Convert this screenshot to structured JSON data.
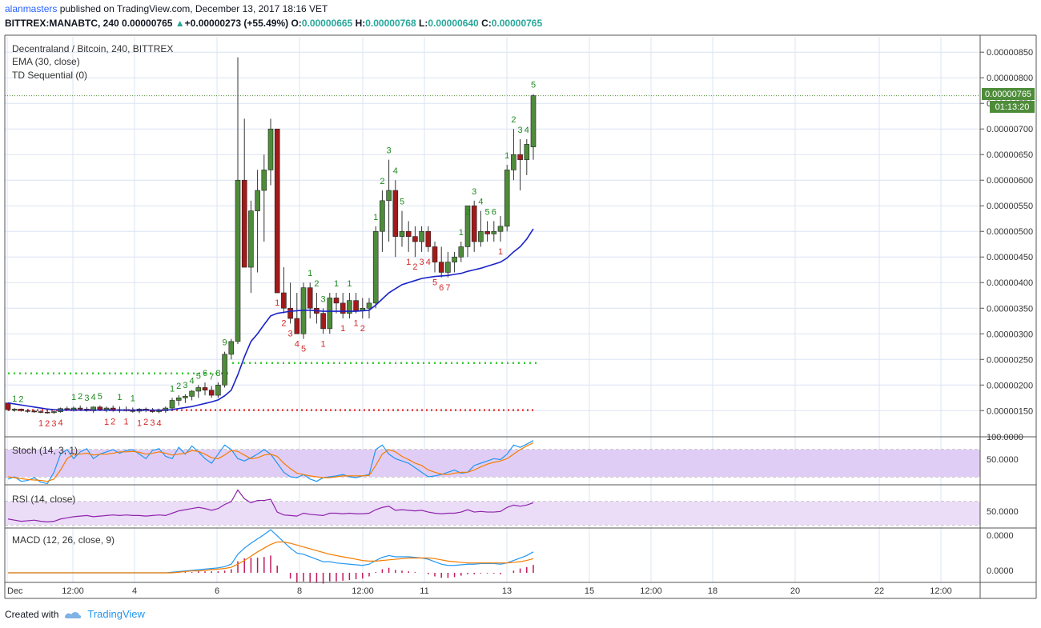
{
  "header": {
    "user": "alanmasters",
    "published_text": " published on TradingView.com, December 13, 2017 18:16 VET",
    "symbol": "BITTREX:MANABTC, 240",
    "last": "0.00000765",
    "change_arrow": "▲",
    "change": "+0.00000273 (+55.49%)",
    "o_label": "O:",
    "o_value": "0.00000665",
    "h_label": "H:",
    "h_value": "0.00000768",
    "l_label": "L:",
    "l_value": "0.00000640",
    "c_label": "C:",
    "c_value": "0.00000765"
  },
  "legend": {
    "title": "Decentraland / Bitcoin, 240, BITTREX",
    "ema": "EMA (30, close)",
    "td": "TD Sequential (0)",
    "stoch": "Stoch (14, 3, 1)",
    "rsi": "RSI (14, close)",
    "macd": "MACD (12, 26, close, 9)"
  },
  "price_badge": {
    "value": "0.00000765",
    "timer": "01:13:20"
  },
  "footer": {
    "created": "Created with",
    "brand": "TradingView"
  },
  "colors": {
    "up": "#4e8c3a",
    "down": "#a31a1a",
    "ema": "#1a23c8",
    "grid": "#dbe4f3",
    "stoch_fill": "#e0cdf5",
    "green_level": "#33cc33",
    "red_level": "#e53935",
    "td_green": "#1f8a1f",
    "td_red": "#d62828",
    "macd_line": "#2196f3",
    "signal_line": "#f57c00",
    "hist": "#c2185b"
  },
  "chart_data": [
    {
      "type": "candlestick",
      "title": "Decentraland / Bitcoin, 240, BITTREX",
      "x_tick_labels": [
        "Dec",
        "12:00",
        "4",
        "6",
        "8",
        "12:00",
        "11",
        "13",
        "15",
        "12:00",
        "18",
        "20",
        "22",
        "12:00"
      ],
      "y_tick_labels": [
        "0.00000150",
        "0.00000200",
        "0.00000250",
        "0.00000300",
        "0.00000350",
        "0.00000400",
        "0.00000450",
        "0.00000500",
        "0.00000550",
        "0.00000600",
        "0.00000650",
        "0.00000700",
        "0.00000750",
        "0.00000800",
        "0.00000850"
      ],
      "ylim": [
        1.02e-06,
        8.8e-06
      ],
      "levels": {
        "green_dotted": 2.43e-06,
        "red_dotted": 1.51e-06,
        "last_price_line": 7.65e-06
      },
      "candles_ohlc": [
        [
          165,
          165,
          150,
          152
        ],
        [
          151,
          155,
          148,
          153
        ],
        [
          153,
          154,
          148,
          150
        ],
        [
          150,
          153,
          146,
          149
        ],
        [
          149,
          152,
          146,
          148
        ],
        [
          148,
          151,
          145,
          147
        ],
        [
          147,
          150,
          144,
          146
        ],
        [
          146,
          150,
          144,
          148
        ],
        [
          148,
          156,
          146,
          154
        ],
        [
          154,
          158,
          150,
          152
        ],
        [
          152,
          158,
          148,
          155
        ],
        [
          155,
          160,
          150,
          153
        ],
        [
          153,
          157,
          148,
          150
        ],
        [
          150,
          158,
          146,
          157
        ],
        [
          157,
          160,
          150,
          152
        ],
        [
          152,
          158,
          147,
          155
        ],
        [
          155,
          160,
          148,
          150
        ],
        [
          150,
          158,
          146,
          152
        ],
        [
          152,
          158,
          148,
          150
        ],
        [
          150,
          156,
          146,
          149
        ],
        [
          149,
          155,
          145,
          153
        ],
        [
          153,
          156,
          147,
          151
        ],
        [
          151,
          155,
          146,
          148
        ],
        [
          148,
          154,
          145,
          150
        ],
        [
          150,
          158,
          146,
          155
        ],
        [
          155,
          175,
          150,
          170
        ],
        [
          170,
          180,
          160,
          175
        ],
        [
          175,
          182,
          165,
          178
        ],
        [
          178,
          190,
          170,
          188
        ],
        [
          188,
          200,
          175,
          195
        ],
        [
          195,
          205,
          180,
          190
        ],
        [
          190,
          198,
          175,
          180
        ],
        [
          180,
          205,
          175,
          200
        ],
        [
          200,
          265,
          195,
          260
        ],
        [
          260,
          290,
          250,
          285
        ],
        [
          285,
          840,
          280,
          600
        ],
        [
          600,
          720,
          430,
          430
        ],
        [
          430,
          560,
          380,
          540
        ],
        [
          540,
          620,
          420,
          580
        ],
        [
          580,
          650,
          480,
          620
        ],
        [
          620,
          720,
          590,
          700
        ],
        [
          700,
          700,
          380,
          380
        ],
        [
          380,
          430,
          340,
          350
        ],
        [
          350,
          400,
          320,
          330
        ],
        [
          330,
          380,
          300,
          300
        ],
        [
          300,
          400,
          290,
          390
        ],
        [
          390,
          400,
          330,
          350
        ],
        [
          350,
          380,
          320,
          340
        ],
        [
          340,
          350,
          300,
          310
        ],
        [
          310,
          380,
          300,
          370
        ],
        [
          370,
          380,
          340,
          360
        ],
        [
          360,
          380,
          330,
          340
        ],
        [
          340,
          380,
          330,
          365
        ],
        [
          365,
          380,
          340,
          345
        ],
        [
          345,
          370,
          330,
          350
        ],
        [
          350,
          370,
          330,
          360
        ],
        [
          360,
          510,
          350,
          500
        ],
        [
          500,
          580,
          460,
          560
        ],
        [
          560,
          640,
          480,
          580
        ],
        [
          580,
          600,
          450,
          490
        ],
        [
          490,
          540,
          470,
          500
        ],
        [
          500,
          520,
          460,
          490
        ],
        [
          490,
          510,
          450,
          480
        ],
        [
          480,
          510,
          460,
          500
        ],
        [
          500,
          510,
          460,
          470
        ],
        [
          470,
          480,
          420,
          440
        ],
        [
          440,
          470,
          410,
          420
        ],
        [
          420,
          460,
          410,
          440
        ],
        [
          440,
          460,
          420,
          450
        ],
        [
          450,
          480,
          440,
          470
        ],
        [
          470,
          520,
          450,
          550
        ],
        [
          550,
          560,
          460,
          480
        ],
        [
          480,
          540,
          470,
          500
        ],
        [
          500,
          520,
          480,
          495
        ],
        [
          495,
          520,
          480,
          500
        ],
        [
          500,
          530,
          480,
          510
        ],
        [
          510,
          630,
          500,
          620
        ],
        [
          620,
          700,
          600,
          650
        ],
        [
          650,
          680,
          580,
          640
        ],
        [
          640,
          680,
          610,
          670
        ],
        [
          665,
          768,
          640,
          765
        ]
      ],
      "ema_30": [
        165,
        163,
        161,
        159,
        157,
        155,
        153,
        152,
        151,
        151,
        151,
        151,
        151,
        151,
        151,
        151,
        151,
        151,
        151,
        151,
        151,
        151,
        151,
        151,
        151,
        152,
        154,
        156,
        158,
        161,
        164,
        167,
        171,
        179,
        190,
        220,
        255,
        285,
        300,
        318,
        335,
        340,
        342,
        344,
        345,
        346,
        346,
        345,
        344,
        344,
        344,
        344,
        344,
        344,
        345,
        346,
        356,
        368,
        380,
        388,
        396,
        400,
        404,
        408,
        410,
        412,
        413,
        414,
        416,
        418,
        422,
        425,
        428,
        432,
        436,
        440,
        448,
        460,
        470,
        485,
        505
      ]
    },
    {
      "type": "line",
      "title": "Stoch (14, 3, 1)",
      "y_tick_labels": [
        "100.0000",
        "50.0000"
      ],
      "ylim": [
        -10,
        110
      ],
      "band": [
        20,
        80
      ],
      "series": [
        {
          "name": "%K",
          "values": [
            15,
            20,
            10,
            12,
            18,
            8,
            5,
            30,
            70,
            80,
            60,
            75,
            82,
            60,
            70,
            75,
            80,
            72,
            78,
            80,
            70,
            60,
            78,
            82,
            65,
            60,
            85,
            70,
            88,
            75,
            60,
            50,
            70,
            90,
            80,
            60,
            55,
            62,
            70,
            80,
            70,
            50,
            30,
            20,
            18,
            25,
            15,
            10,
            18,
            20,
            22,
            25,
            20,
            18,
            22,
            25,
            80,
            90,
            70,
            60,
            55,
            50,
            40,
            30,
            20,
            22,
            25,
            30,
            35,
            28,
            30,
            45,
            50,
            55,
            60,
            58,
            70,
            90,
            85,
            92,
            100
          ]
        },
        {
          "name": "%D",
          "values": [
            20,
            18,
            16,
            14,
            13,
            12,
            10,
            15,
            35,
            60,
            70,
            70,
            72,
            68,
            70,
            70,
            72,
            75,
            75,
            76,
            74,
            70,
            72,
            75,
            72,
            68,
            70,
            72,
            78,
            76,
            70,
            62,
            60,
            68,
            78,
            76,
            68,
            60,
            62,
            68,
            70,
            65,
            50,
            38,
            28,
            25,
            22,
            20,
            18,
            18,
            20,
            22,
            22,
            22,
            22,
            23,
            45,
            70,
            80,
            75,
            65,
            58,
            50,
            45,
            35,
            30,
            26,
            25,
            28,
            30,
            30,
            35,
            42,
            48,
            52,
            55,
            60,
            70,
            80,
            88,
            95
          ]
        }
      ]
    },
    {
      "type": "line",
      "title": "RSI (14, close)",
      "y_tick_labels": [
        "50.0000"
      ],
      "ylim": [
        20,
        95
      ],
      "band": [
        30,
        70
      ],
      "series": [
        {
          "name": "RSI",
          "values": [
            40,
            38,
            36,
            37,
            38,
            36,
            35,
            36,
            40,
            42,
            44,
            45,
            46,
            44,
            45,
            46,
            47,
            46,
            47,
            46,
            46,
            45,
            46,
            47,
            46,
            50,
            54,
            56,
            58,
            60,
            58,
            55,
            58,
            65,
            70,
            90,
            75,
            68,
            72,
            72,
            74,
            52,
            47,
            46,
            45,
            50,
            48,
            47,
            46,
            50,
            50,
            49,
            50,
            49,
            49,
            50,
            56,
            60,
            62,
            55,
            56,
            55,
            54,
            55,
            52,
            50,
            49,
            50,
            50,
            52,
            56,
            52,
            53,
            52,
            52,
            53,
            60,
            64,
            62,
            64,
            68
          ]
        }
      ]
    },
    {
      "type": "line",
      "title": "MACD (12, 26, close, 9)",
      "y_tick_labels": [
        "0.0000",
        "0.0000"
      ],
      "series": [
        {
          "name": "MACD",
          "values": [
            0,
            0,
            0,
            0,
            0,
            0,
            0,
            0,
            0,
            0,
            0,
            0,
            0,
            0,
            0,
            0,
            0,
            0,
            0,
            0,
            0,
            0,
            0,
            0,
            0,
            1,
            2,
            3,
            4,
            5,
            6,
            7,
            8,
            10,
            14,
            30,
            40,
            48,
            55,
            62,
            70,
            60,
            50,
            40,
            32,
            30,
            26,
            22,
            18,
            18,
            16,
            15,
            14,
            13,
            12,
            14,
            20,
            25,
            28,
            26,
            26,
            26,
            25,
            24,
            22,
            18,
            14,
            12,
            12,
            13,
            14,
            14,
            15,
            15,
            15,
            14,
            16,
            20,
            24,
            28,
            34
          ]
        },
        {
          "name": "Signal",
          "values": [
            0,
            0,
            0,
            0,
            0,
            0,
            0,
            0,
            0,
            0,
            0,
            0,
            0,
            0,
            0,
            0,
            0,
            0,
            0,
            0,
            0,
            0,
            0,
            0,
            0,
            0,
            1,
            2,
            3,
            3,
            4,
            5,
            6,
            7,
            9,
            14,
            20,
            27,
            34,
            40,
            46,
            50,
            50,
            48,
            45,
            42,
            39,
            36,
            33,
            30,
            28,
            26,
            24,
            22,
            20,
            19,
            19,
            20,
            21,
            22,
            23,
            24,
            24,
            24,
            24,
            23,
            21,
            19,
            18,
            17,
            16,
            16,
            16,
            16,
            16,
            16,
            16,
            17,
            18,
            20,
            23
          ]
        }
      ]
    }
  ]
}
